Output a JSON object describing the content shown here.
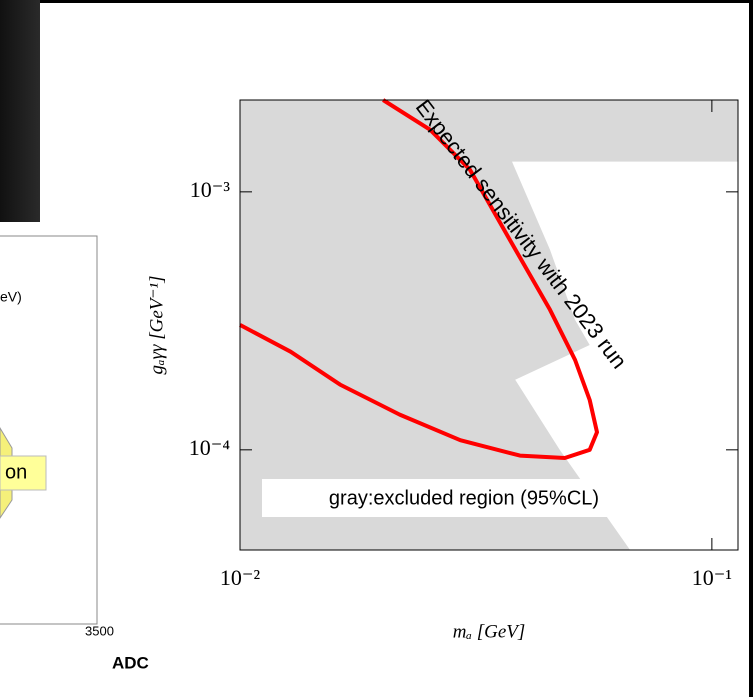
{
  "left_panel": {
    "texts": [
      "eV)",
      "on",
      "3500",
      "ADC"
    ]
  },
  "chart_data": {
    "type": "line",
    "xlabel": "mₐ [GeV]",
    "ylabel": "gₐγγ [GeV⁻¹]",
    "xscale": "log",
    "yscale": "log",
    "xlim": [
      0.01,
      0.1136
    ],
    "ylim": [
      4.09e-05,
      0.00227
    ],
    "xticks": [
      {
        "value": 0.01,
        "label": "10⁻²"
      },
      {
        "value": 0.1,
        "label": "10⁻¹"
      }
    ],
    "yticks": [
      {
        "value": 0.0001,
        "label": "10⁻⁴"
      },
      {
        "value": 0.001,
        "label": "10⁻³"
      }
    ],
    "annotations": [
      "Expected sensitivity with 2023 run",
      "gray:excluded region (95%CL)"
    ],
    "series": [
      {
        "color": "#d9d9d9",
        "fill": true,
        "x": [
          0.01,
          0.1136,
          0.1136,
          0.0377,
          0.0454,
          0.0513,
          0.0551,
          0.0383,
          0.0476,
          0.0671,
          0.01
        ],
        "values": [
          0.00227,
          0.00227,
          0.00131,
          0.00131,
          0.000596,
          0.000319,
          0.000255,
          0.000187,
          0.0001,
          4.09e-05,
          4.09e-05
        ]
      },
      {
        "color": "#ff0000",
        "fill": false,
        "x": [
          0.01,
          0.0128,
          0.0163,
          0.0218,
          0.0293,
          0.0392,
          0.0488,
          0.0551,
          0.0571,
          0.0551,
          0.0513,
          0.0454,
          0.0373,
          0.0307,
          0.0253,
          0.0201
        ],
        "values": [
          0.000305,
          0.00024,
          0.000179,
          0.000137,
          0.000109,
          9.5e-05,
          9.3e-05,
          0.0001,
          0.000117,
          0.000156,
          0.000223,
          0.000349,
          0.000652,
          0.00122,
          0.00174,
          0.00227
        ]
      }
    ]
  }
}
